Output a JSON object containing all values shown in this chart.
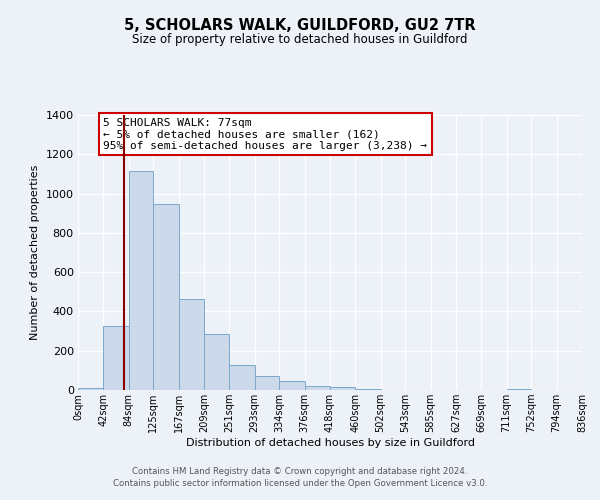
{
  "title": "5, SCHOLARS WALK, GUILDFORD, GU2 7TR",
  "subtitle": "Size of property relative to detached houses in Guildford",
  "xlabel": "Distribution of detached houses by size in Guildford",
  "ylabel": "Number of detached properties",
  "bar_color": "#ccd9ea",
  "bar_edge_color": "#7aa8cc",
  "background_color": "#edf2f9",
  "grid_color": "#ffffff",
  "vline_x": 77,
  "vline_color": "#8b0000",
  "annotation_title": "5 SCHOLARS WALK: 77sqm",
  "annotation_line1": "← 5% of detached houses are smaller (162)",
  "annotation_line2": "95% of semi-detached houses are larger (3,238) →",
  "annotation_box_color": "#ffffff",
  "annotation_box_edge": "#cc0000",
  "bin_edges": [
    0,
    42,
    84,
    125,
    167,
    209,
    251,
    293,
    334,
    376,
    418,
    460,
    502,
    543,
    585,
    627,
    669,
    711,
    752,
    794,
    836
  ],
  "bin_counts": [
    10,
    328,
    1113,
    945,
    463,
    285,
    126,
    70,
    45,
    20,
    17,
    5,
    0,
    0,
    0,
    0,
    0,
    5,
    0,
    0
  ],
  "ylim": [
    0,
    1400
  ],
  "yticks": [
    0,
    200,
    400,
    600,
    800,
    1000,
    1200,
    1400
  ],
  "footer1": "Contains HM Land Registry data © Crown copyright and database right 2024.",
  "footer2": "Contains public sector information licensed under the Open Government Licence v3.0.",
  "tick_labels": [
    "0sqm",
    "42sqm",
    "84sqm",
    "125sqm",
    "167sqm",
    "209sqm",
    "251sqm",
    "293sqm",
    "334sqm",
    "376sqm",
    "418sqm",
    "460sqm",
    "502sqm",
    "543sqm",
    "585sqm",
    "627sqm",
    "669sqm",
    "711sqm",
    "752sqm",
    "794sqm",
    "836sqm"
  ]
}
